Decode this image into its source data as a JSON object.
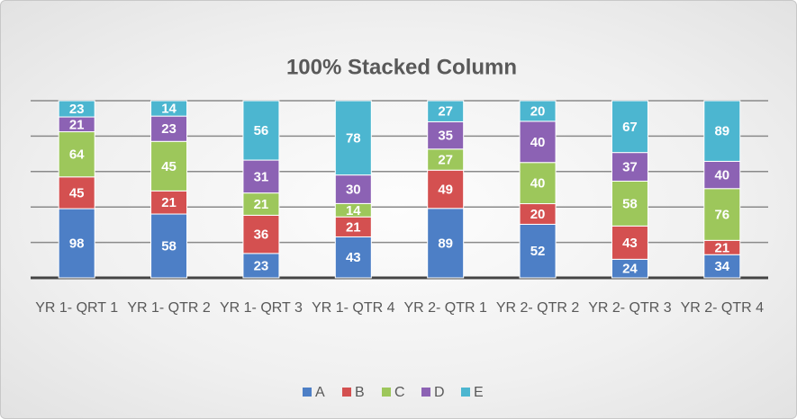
{
  "chart_data": {
    "type": "stacked_percent_bar",
    "title": "100% Stacked Column",
    "categories": [
      "YR 1- QRT 1",
      "YR 1- QTR 2",
      "YR 1- QRT 3",
      "YR 1- QTR 4",
      "YR 2- QTR 1",
      "YR 2- QTR 2",
      "YR 2- QTR 3",
      "YR 2- QTR 4"
    ],
    "series": [
      {
        "name": "A",
        "color": "#4d7fc6",
        "values": [
          98,
          58,
          23,
          43,
          89,
          52,
          24,
          34
        ]
      },
      {
        "name": "B",
        "color": "#d45050",
        "values": [
          45,
          21,
          36,
          21,
          49,
          20,
          43,
          21
        ]
      },
      {
        "name": "C",
        "color": "#9dc75b",
        "values": [
          64,
          45,
          21,
          14,
          27,
          40,
          58,
          76
        ]
      },
      {
        "name": "D",
        "color": "#8c62b4",
        "values": [
          21,
          23,
          31,
          30,
          35,
          40,
          37,
          40
        ]
      },
      {
        "name": "E",
        "color": "#4cb6d0",
        "values": [
          23,
          14,
          56,
          78,
          27,
          20,
          67,
          89
        ]
      }
    ],
    "ylim": [
      0,
      100
    ],
    "yticks": [
      0,
      20,
      40,
      60,
      80,
      100
    ],
    "grid": true,
    "legend": "bottom"
  }
}
